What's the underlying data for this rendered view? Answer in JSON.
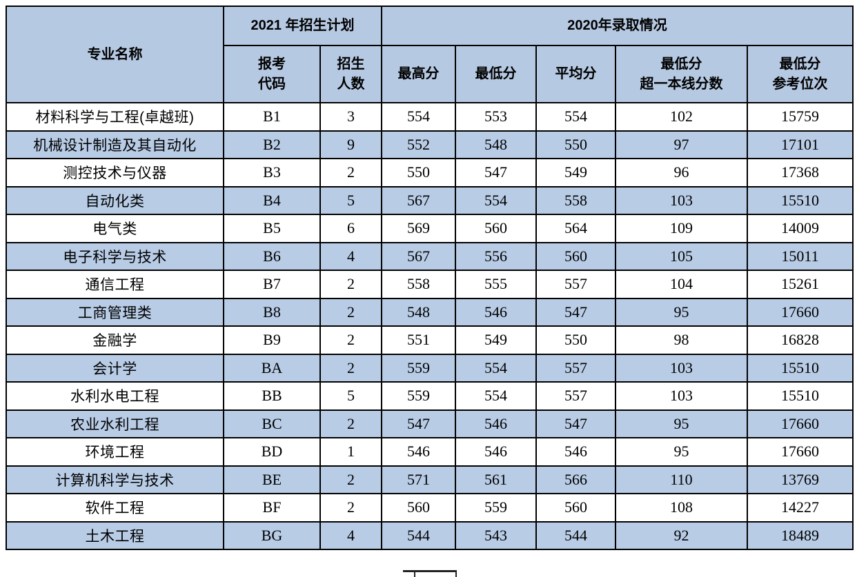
{
  "colors": {
    "header_bg": "#b6c9e2",
    "row_alt_bg": "#b8cce6",
    "row_bg": "#ffffff",
    "border": "#000000"
  },
  "table": {
    "header": {
      "major": "专业名称",
      "group_2021": "2021 年招生计划",
      "group_2020": "2020年录取情况",
      "code_l1": "报考",
      "code_l2": "代码",
      "count_l1": "招生",
      "count_l2": "人数",
      "max_score": "最高分",
      "min_score": "最低分",
      "avg_score": "平均分",
      "over_line_l1": "最低分",
      "over_line_l2": "超一本线分数",
      "ref_rank_l1": "最低分",
      "ref_rank_l2": "参考位次"
    },
    "column_names": [
      "major-name",
      "apply-code",
      "enroll-count",
      "max-score",
      "min-score",
      "avg-score",
      "over-first-tier-score",
      "reference-rank"
    ],
    "rows": [
      [
        "材料科学与工程(卓越班)",
        "B1",
        "3",
        "554",
        "553",
        "554",
        "102",
        "15759"
      ],
      [
        "机械设计制造及其自动化",
        "B2",
        "9",
        "552",
        "548",
        "550",
        "97",
        "17101"
      ],
      [
        "测控技术与仪器",
        "B3",
        "2",
        "550",
        "547",
        "549",
        "96",
        "17368"
      ],
      [
        "自动化类",
        "B4",
        "5",
        "567",
        "554",
        "558",
        "103",
        "15510"
      ],
      [
        "电气类",
        "B5",
        "6",
        "569",
        "560",
        "564",
        "109",
        "14009"
      ],
      [
        "电子科学与技术",
        "B6",
        "4",
        "567",
        "556",
        "560",
        "105",
        "15011"
      ],
      [
        "通信工程",
        "B7",
        "2",
        "558",
        "555",
        "557",
        "104",
        "15261"
      ],
      [
        "工商管理类",
        "B8",
        "2",
        "548",
        "546",
        "547",
        "95",
        "17660"
      ],
      [
        "金融学",
        "B9",
        "2",
        "551",
        "549",
        "550",
        "98",
        "16828"
      ],
      [
        "会计学",
        "BA",
        "2",
        "559",
        "554",
        "557",
        "103",
        "15510"
      ],
      [
        "水利水电工程",
        "BB",
        "5",
        "559",
        "554",
        "557",
        "103",
        "15510"
      ],
      [
        "农业水利工程",
        "BC",
        "2",
        "547",
        "546",
        "547",
        "95",
        "17660"
      ],
      [
        "环境工程",
        "BD",
        "1",
        "546",
        "546",
        "546",
        "95",
        "17660"
      ],
      [
        "计算机科学与技术",
        "BE",
        "2",
        "571",
        "561",
        "566",
        "110",
        "13769"
      ],
      [
        "软件工程",
        "BF",
        "2",
        "560",
        "559",
        "560",
        "108",
        "14227"
      ],
      [
        "土木工程",
        "BG",
        "4",
        "544",
        "543",
        "544",
        "92",
        "18489"
      ]
    ]
  }
}
